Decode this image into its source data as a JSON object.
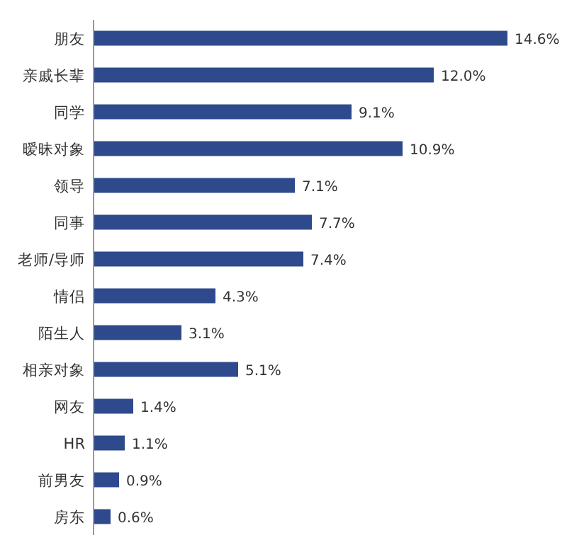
{
  "chart_data": {
    "type": "bar",
    "orientation": "horizontal",
    "categories": [
      "朋友",
      "亲戚长辈",
      "同学",
      "暧昧对象",
      "领导",
      "同事",
      "老师/导师",
      "情侣",
      "陌生人",
      "相亲对象",
      "网友",
      "HR",
      "前男友",
      "房东"
    ],
    "values": [
      14.6,
      12.0,
      9.1,
      10.9,
      7.1,
      7.7,
      7.4,
      4.3,
      3.1,
      5.1,
      1.4,
      1.1,
      0.9,
      0.6
    ],
    "value_labels": [
      "14.6%",
      "12.0%",
      "9.1%",
      "10.9%",
      "7.1%",
      "7.7%",
      "7.4%",
      "4.3%",
      "3.1%",
      "5.1%",
      "1.4%",
      "1.1%",
      "0.9%",
      "0.6%"
    ],
    "color": "#2e4a8c",
    "tick_labels": "y"
  }
}
